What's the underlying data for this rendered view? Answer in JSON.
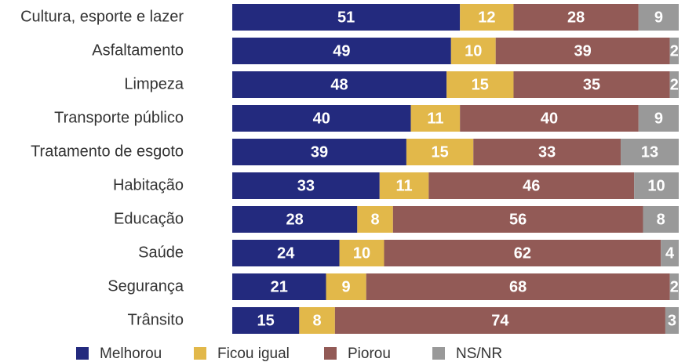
{
  "chart_data": {
    "type": "stacked-barh",
    "categories": [
      "Cultura, esporte e lazer",
      "Asfaltamento",
      "Limpeza",
      "Transporte público",
      "Tratamento de esgoto",
      "Habitação",
      "Educação",
      "Saúde",
      "Segurança",
      "Trânsito"
    ],
    "xlim": [
      0,
      100
    ],
    "series": [
      {
        "name": "Melhorou",
        "color": "#232a7e",
        "values": [
          51,
          49,
          48,
          40,
          39,
          33,
          28,
          24,
          21,
          15
        ]
      },
      {
        "name": "Ficou igual",
        "color": "#e2b84a",
        "values": [
          12,
          10,
          15,
          11,
          15,
          11,
          8,
          10,
          9,
          8
        ]
      },
      {
        "name": "Piorou",
        "color": "#925a56",
        "values": [
          28,
          39,
          35,
          40,
          33,
          46,
          56,
          62,
          68,
          74
        ]
      },
      {
        "name": "NS/NR",
        "color": "#999999",
        "values": [
          9,
          2,
          2,
          9,
          13,
          10,
          8,
          4,
          2,
          3
        ]
      }
    ]
  }
}
